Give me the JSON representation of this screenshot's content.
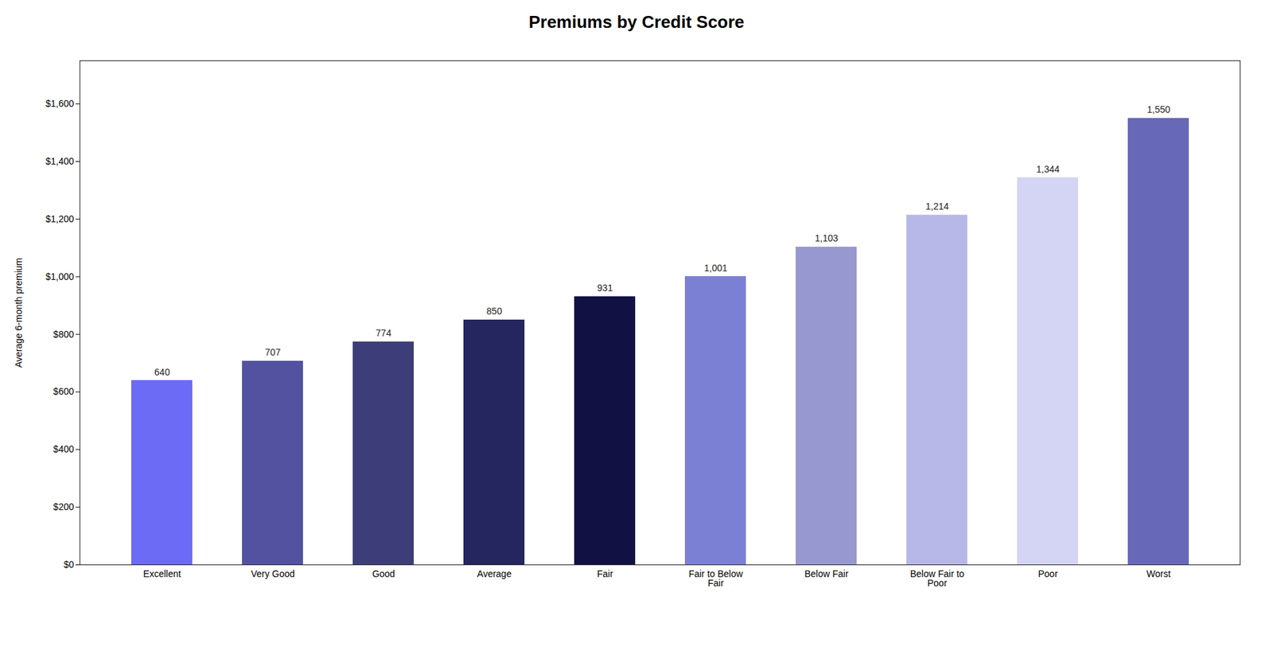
{
  "chart_data": {
    "type": "bar",
    "title": "Premiums by Credit Score",
    "ylabel": "Average 6-month premium",
    "categories": [
      "Excellent",
      "Very Good",
      "Good",
      "Average",
      "Fair",
      "Fair to Below\nFair",
      "Below Fair",
      "Below Fair to\nPoor",
      "Poor",
      "Worst"
    ],
    "values": [
      640,
      707,
      774,
      850,
      931,
      1001,
      1103,
      1214,
      1344,
      1550
    ],
    "value_labels": [
      "640",
      "707",
      "774",
      "850",
      "931",
      "1,001",
      "1,103",
      "1,214",
      "1,344",
      "1,550"
    ],
    "data_labels": true,
    "colors": [
      "#6B6BF5",
      "#5252A0",
      "#3D3D7A",
      "#252560",
      "#111144",
      "#7B80D4",
      "#9898D0",
      "#B8B8E8",
      "#D4D4F5",
      "#6868B8"
    ],
    "ylim": [
      0,
      1750
    ],
    "yticks": [
      {
        "value": 0,
        "label": "$0"
      },
      {
        "value": 200,
        "label": "$200"
      },
      {
        "value": 400,
        "label": "$400"
      },
      {
        "value": 600,
        "label": "$600"
      },
      {
        "value": 800,
        "label": "$800"
      },
      {
        "value": 1000,
        "label": "$1,000"
      },
      {
        "value": 1200,
        "label": "$1,200"
      },
      {
        "value": 1400,
        "label": "$1,400"
      },
      {
        "value": 1600,
        "label": "$1,600"
      }
    ],
    "grid": false
  }
}
